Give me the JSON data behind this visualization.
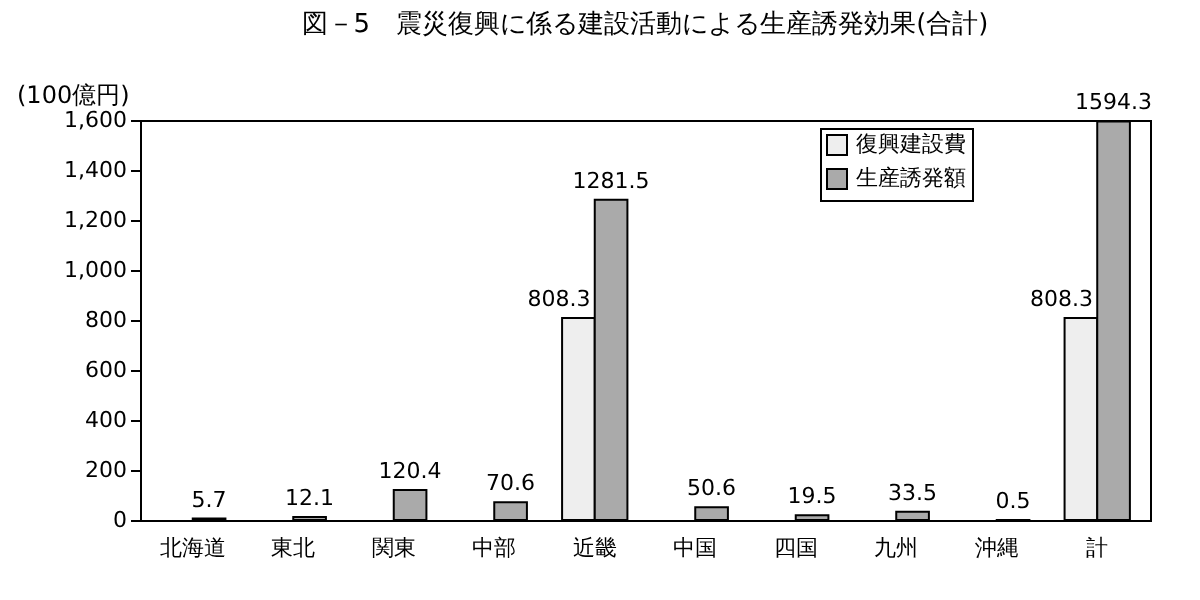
{
  "chart_data": {
    "type": "bar",
    "title": "図－5　震災復興に係る建設活動による生産誘発効果(合計)",
    "ylabel": "(100億円)",
    "categories": [
      "北海道",
      "東北",
      "関東",
      "中部",
      "近畿",
      "中国",
      "四国",
      "九州",
      "沖縄",
      "計"
    ],
    "series": [
      {
        "name": "復興建設費",
        "color": "#eeeeee",
        "values": [
          null,
          null,
          null,
          null,
          808.3,
          null,
          null,
          null,
          null,
          808.3
        ]
      },
      {
        "name": "生産誘発額",
        "color": "#aaaaaa",
        "values": [
          5.7,
          12.1,
          120.4,
          70.6,
          1281.5,
          50.6,
          19.5,
          33.5,
          0.5,
          1594.3
        ]
      }
    ],
    "ylim": [
      0,
      1600
    ],
    "yticks": [
      {
        "value": 0,
        "label": "0"
      },
      {
        "value": 200,
        "label": "200"
      },
      {
        "value": 400,
        "label": "400"
      },
      {
        "value": 600,
        "label": "600"
      },
      {
        "value": 800,
        "label": "800"
      },
      {
        "value": 1000,
        "label": "1,000"
      },
      {
        "value": 1200,
        "label": "1,200"
      },
      {
        "value": 1400,
        "label": "1,400"
      },
      {
        "value": 1600,
        "label": "1,600"
      }
    ],
    "data_labels": true,
    "legend": "top right",
    "grid": false
  }
}
